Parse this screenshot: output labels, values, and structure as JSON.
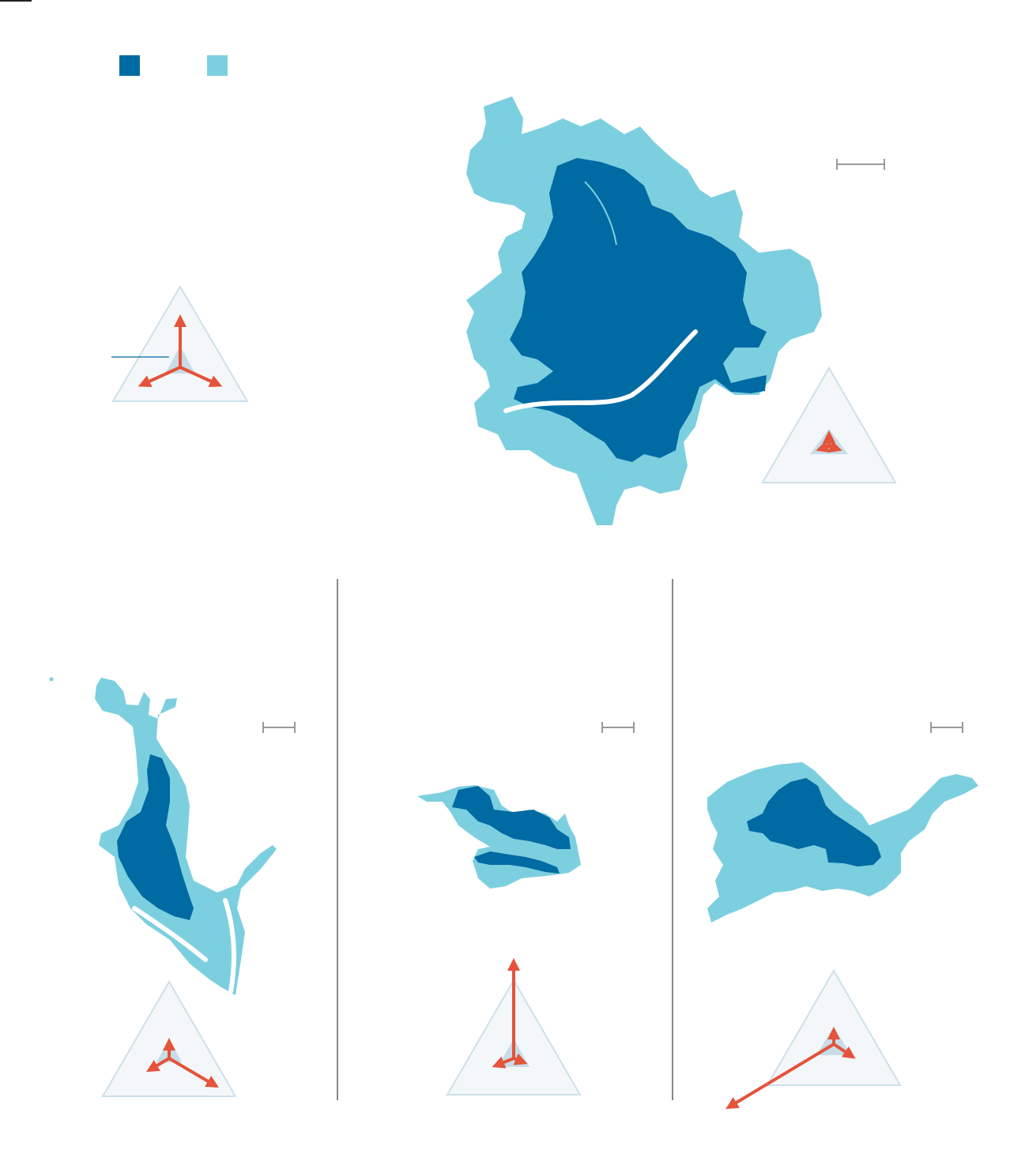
{
  "colors": {
    "built_area": "#006aa3",
    "expansion_area": "#7ccfdf",
    "arrow": "#e4533a",
    "triangle_fill": "#f4f7f9",
    "triangle_stroke": "#cde0ea",
    "center_shape": "#c7dce7",
    "scale_bar": "#999999",
    "divider": "#888888"
  },
  "legend": {
    "items": [
      {
        "color_key": "built_area"
      },
      {
        "color_key": "expansion_area"
      }
    ]
  },
  "panels": [
    {
      "name": "main-city",
      "has_scale_bar": true
    },
    {
      "name": "river-valley-city",
      "has_scale_bar": true
    },
    {
      "name": "small-city",
      "has_scale_bar": true
    },
    {
      "name": "east-city",
      "has_scale_bar": true
    }
  ],
  "icons": [
    "triangle-diagram-icon",
    "direction-arrow-icon",
    "scale-bar-icon"
  ]
}
